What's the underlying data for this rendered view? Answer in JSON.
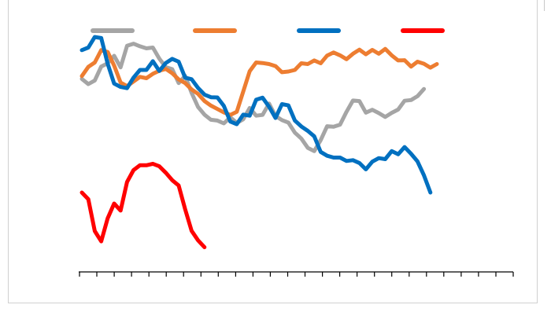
{
  "chart_data": {
    "type": "line",
    "title": "",
    "xlabel": "",
    "ylabel": "",
    "tick_labels_shown": false,
    "ylim": [
      0,
      100
    ],
    "x_ticks": 26,
    "grid": false,
    "legend_position": "top",
    "series": [
      {
        "color": "#a5a5a5",
        "values": [
          75.4,
          73.4,
          74.8,
          80.2,
          81.5,
          84.4,
          79.9,
          88.3,
          89.1,
          88.1,
          87.3,
          87.6,
          83.3,
          80.0,
          79.2,
          73.8,
          76.6,
          70.0,
          64.5,
          61.5,
          59.5,
          59.2,
          58.1,
          60.5,
          58.3,
          59.7,
          64.1,
          61.1,
          61.4,
          65.8,
          61.0,
          59.4,
          58.4,
          54.5,
          52.2,
          48.6,
          47.3,
          51.6,
          57.0,
          56.8,
          57.6,
          62.6,
          67.0,
          66.8,
          62.3,
          63.4,
          62.1,
          60.6,
          62.2,
          63.5,
          66.9,
          67.2,
          68.7,
          71.5
        ]
      },
      {
        "color": "#ed7d31",
        "values": [
          76.5,
          80.1,
          81.8,
          86.6,
          85.9,
          80.6,
          74.0,
          72.6,
          74.4,
          76.2,
          75.7,
          77.4,
          78.6,
          79.3,
          77.6,
          75.2,
          73.8,
          71.3,
          69.6,
          66.8,
          65.0,
          63.7,
          62.4,
          61.4,
          62.6,
          70.5,
          78.4,
          81.8,
          81.6,
          81.2,
          80.4,
          78.0,
          78.3,
          78.9,
          81.5,
          81.2,
          82.6,
          81.5,
          84.5,
          85.7,
          84.6,
          83.1,
          85.2,
          86.8,
          85.0,
          86.7,
          85.2,
          87.1,
          84.6,
          82.6,
          82.7,
          80.2,
          82.1,
          81.3,
          79.8,
          81.2
        ]
      },
      {
        "color": "#0070c0",
        "values": [
          86.6,
          87.6,
          91.7,
          91.3,
          81.3,
          73.6,
          72.3,
          71.8,
          75.9,
          78.9,
          78.9,
          82.3,
          78.5,
          81.6,
          83.2,
          82.1,
          75.9,
          75.3,
          71.9,
          69.3,
          68.3,
          68.2,
          64.9,
          58.8,
          57.8,
          61.5,
          61.1,
          67.3,
          68.1,
          64.6,
          60.2,
          65.6,
          65.1,
          59.2,
          56.9,
          55.2,
          53.1,
          47.0,
          45.5,
          44.8,
          44.8,
          43.5,
          43.8,
          42.7,
          40.2,
          43.2,
          44.6,
          44.2,
          47.3,
          46.1,
          48.9,
          46.3,
          43.3,
          37.9,
          31.2
        ]
      },
      {
        "color": "#ff0000",
        "values": [
          31.2,
          28.6,
          16.2,
          12.2,
          21.2,
          26.9,
          24.2,
          35.3,
          39.9,
          41.8,
          41.8,
          42.4,
          41.4,
          38.9,
          36.0,
          33.9,
          24.7,
          16.3,
          12.6,
          9.9
        ]
      }
    ]
  }
}
